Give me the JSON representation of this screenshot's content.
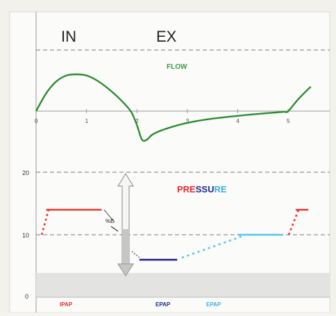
{
  "chart_data": [
    {
      "type": "line",
      "panel": "flow",
      "phase_labels": [
        "IN",
        "EX"
      ],
      "title": "FLOW",
      "x_ticks": [
        "0",
        "1",
        "2",
        "3",
        "4",
        "5"
      ],
      "xlim": [
        0,
        5.5
      ],
      "series": [
        {
          "name": "FLOW",
          "color": "#2e8b2e",
          "x": [
            0,
            0.2,
            0.4,
            0.6,
            0.8,
            1.0,
            1.2,
            1.4,
            1.6,
            1.8,
            1.9,
            2.0,
            2.1,
            2.2,
            2.3,
            2.5,
            2.8,
            3.1,
            3.5,
            4.0,
            4.5,
            4.9,
            5.0,
            5.2,
            5.45
          ],
          "y": [
            0.0,
            0.45,
            0.75,
            0.9,
            0.93,
            0.9,
            0.78,
            0.6,
            0.38,
            0.12,
            -0.05,
            -0.35,
            -0.72,
            -0.72,
            -0.6,
            -0.48,
            -0.36,
            -0.27,
            -0.19,
            -0.12,
            -0.06,
            -0.02,
            0.0,
            0.3,
            0.62
          ]
        }
      ]
    },
    {
      "type": "line",
      "panel": "pressure",
      "title_letters": [
        {
          "text": "PRE",
          "color": "#e03030"
        },
        {
          "text": "SSU",
          "color": "#1a2a8a"
        },
        {
          "text": "RE",
          "color": "#3ab0e0"
        }
      ],
      "y_ticks": [
        "0",
        "10",
        "20"
      ],
      "ylim": [
        0,
        24
      ],
      "series": [
        {
          "name": "IPAP",
          "color": "#e83a2a",
          "x": [
            0.2,
            1.3
          ],
          "y": [
            14,
            14
          ]
        },
        {
          "name": "IPAP",
          "color": "#e83a2a",
          "x": [
            5.15,
            5.4
          ],
          "y": [
            14,
            14
          ]
        },
        {
          "name": "EPAP",
          "color": "#1a1a8a",
          "x": [
            2.05,
            2.8
          ],
          "y": [
            6,
            6
          ]
        },
        {
          "name": "EPAP",
          "color": "#55c3ee",
          "x": [
            4.0,
            4.9
          ],
          "y": [
            10,
            10
          ]
        }
      ],
      "annotation": "%E",
      "legend": [
        {
          "label": "IPAP",
          "color": "#e03030"
        },
        {
          "label": "EPAP",
          "color": "#1a2a8a"
        },
        {
          "label": "EPAP",
          "color": "#3ab0e0"
        }
      ]
    }
  ]
}
